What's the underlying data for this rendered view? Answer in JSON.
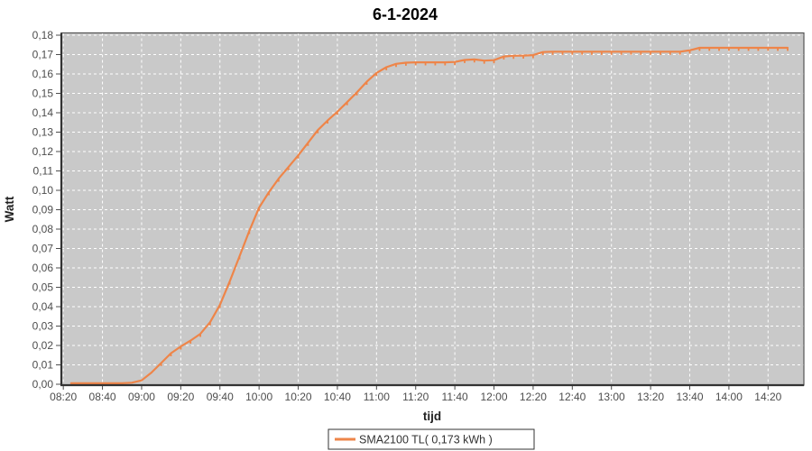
{
  "chart_data": {
    "type": "line",
    "title": "6-1-2024",
    "xlabel": "tijd",
    "ylabel": "Watt",
    "legend": [
      {
        "label": "SMA2100 TL( 0,173 kWh )",
        "color": "#EE8549"
      }
    ],
    "legend_position": "bottom-center",
    "grid": true,
    "x_tick_labels": [
      "08:20",
      "08:40",
      "09:00",
      "09:20",
      "09:40",
      "10:00",
      "10:20",
      "10:40",
      "11:00",
      "11:20",
      "11:40",
      "12:00",
      "12:20",
      "12:40",
      "13:00",
      "13:20",
      "13:40",
      "14:00",
      "14:20"
    ],
    "y_tick_labels": [
      "0,00",
      "0,01",
      "0,02",
      "0,03",
      "0,04",
      "0,05",
      "0,06",
      "0,07",
      "0,08",
      "0,09",
      "0,10",
      "0,11",
      "0,12",
      "0,13",
      "0,14",
      "0,15",
      "0,16",
      "0,17",
      "0,18"
    ],
    "y_tick_values": [
      0.0,
      0.01,
      0.02,
      0.03,
      0.04,
      0.05,
      0.06,
      0.07,
      0.08,
      0.09,
      0.1,
      0.11,
      0.12,
      0.13,
      0.14,
      0.15,
      0.16,
      0.17,
      0.18
    ],
    "ylim": [
      0,
      0.18
    ],
    "xlim_time": [
      "08:19",
      "14:38"
    ],
    "series": [
      {
        "name": "SMA2100 TL",
        "total_kwh_label": "0,173",
        "points": [
          [
            "08:24",
            0.0005
          ],
          [
            "08:30",
            0.0005
          ],
          [
            "08:35",
            0.0005
          ],
          [
            "08:40",
            0.0005
          ],
          [
            "08:45",
            0.0005
          ],
          [
            "08:50",
            0.0005
          ],
          [
            "08:55",
            0.0008
          ],
          [
            "09:00",
            0.002
          ],
          [
            "09:05",
            0.006
          ],
          [
            "09:10",
            0.011
          ],
          [
            "09:15",
            0.016
          ],
          [
            "09:20",
            0.0195
          ],
          [
            "09:25",
            0.0225
          ],
          [
            "09:30",
            0.026
          ],
          [
            "09:35",
            0.032
          ],
          [
            "09:40",
            0.041
          ],
          [
            "09:45",
            0.053
          ],
          [
            "09:50",
            0.066
          ],
          [
            "09:55",
            0.079
          ],
          [
            "10:00",
            0.091
          ],
          [
            "10:05",
            0.099
          ],
          [
            "10:10",
            0.106
          ],
          [
            "10:15",
            0.112
          ],
          [
            "10:20",
            0.118
          ],
          [
            "10:25",
            0.1245
          ],
          [
            "10:30",
            0.131
          ],
          [
            "10:35",
            0.136
          ],
          [
            "10:40",
            0.1405
          ],
          [
            "10:45",
            0.1455
          ],
          [
            "10:50",
            0.1505
          ],
          [
            "10:55",
            0.156
          ],
          [
            "11:00",
            0.1605
          ],
          [
            "11:05",
            0.1635
          ],
          [
            "11:10",
            0.1652
          ],
          [
            "11:15",
            0.1658
          ],
          [
            "11:20",
            0.166
          ],
          [
            "11:25",
            0.166
          ],
          [
            "11:30",
            0.166
          ],
          [
            "11:35",
            0.166
          ],
          [
            "11:40",
            0.1662
          ],
          [
            "11:45",
            0.1672
          ],
          [
            "11:50",
            0.1675
          ],
          [
            "11:55",
            0.1669
          ],
          [
            "12:00",
            0.1671
          ],
          [
            "12:05",
            0.169
          ],
          [
            "12:10",
            0.1694
          ],
          [
            "12:15",
            0.1695
          ],
          [
            "12:20",
            0.1697
          ],
          [
            "12:25",
            0.1713
          ],
          [
            "12:30",
            0.1715
          ],
          [
            "12:35",
            0.1715
          ],
          [
            "12:40",
            0.1715
          ],
          [
            "12:45",
            0.1715
          ],
          [
            "12:50",
            0.1715
          ],
          [
            "12:55",
            0.1715
          ],
          [
            "13:00",
            0.1715
          ],
          [
            "13:05",
            0.1715
          ],
          [
            "13:10",
            0.1715
          ],
          [
            "13:15",
            0.1715
          ],
          [
            "13:20",
            0.1715
          ],
          [
            "13:25",
            0.1715
          ],
          [
            "13:30",
            0.1715
          ],
          [
            "13:35",
            0.1715
          ],
          [
            "13:40",
            0.1722
          ],
          [
            "13:45",
            0.1735
          ],
          [
            "13:50",
            0.1735
          ],
          [
            "13:55",
            0.1735
          ],
          [
            "14:00",
            0.1735
          ],
          [
            "14:05",
            0.1735
          ],
          [
            "14:10",
            0.1735
          ],
          [
            "14:15",
            0.1735
          ],
          [
            "14:20",
            0.1735
          ],
          [
            "14:25",
            0.1735
          ],
          [
            "14:30",
            0.1735
          ]
        ]
      }
    ],
    "colors": {
      "plot_background": "#c9c9c9",
      "gridline": "#ffffff",
      "series_line": "#EE8549",
      "plot_border": "#555555",
      "axis_line": "#333333",
      "tick_label": "#4d4d4d",
      "legend_border": "#333333",
      "legend_background": "#ffffff",
      "legend_text": "#333333"
    }
  }
}
